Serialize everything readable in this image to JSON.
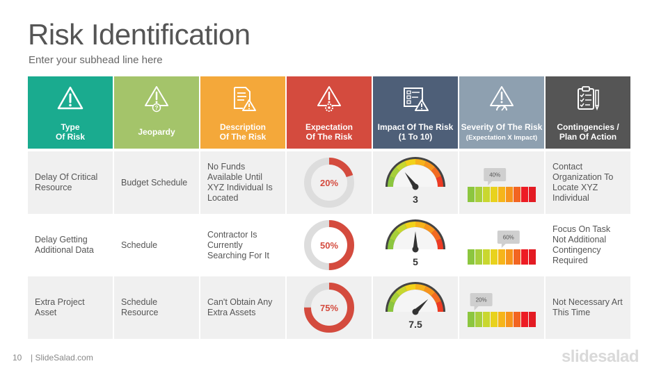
{
  "title": "Risk Identification",
  "subhead": "Enter your subhead line here",
  "headers": [
    {
      "line1": "Type",
      "line2": "Of Risk",
      "color": "#1aab8f",
      "icon": "warning-icon"
    },
    {
      "line1": "Jeopardy",
      "line2": "",
      "color": "#a4c46a",
      "icon": "warning-question-icon"
    },
    {
      "line1": "Description",
      "line2": "Of The Risk",
      "color": "#f4a83a",
      "icon": "document-warning-icon"
    },
    {
      "line1": "Expectation",
      "line2": "Of The Risk",
      "color": "#d44b3e",
      "icon": "warning-gear-icon"
    },
    {
      "line1": "Impact Of The Risk",
      "line2": "(1 To 10)",
      "color": "#4e5f78",
      "icon": "checklist-warning-icon"
    },
    {
      "line1": "Severity Of The Risk",
      "line2": "(Expectation X Impact)",
      "color": "#8ea0b0",
      "icon": "warning-gauge-icon"
    },
    {
      "line1": "Contingencies /",
      "line2": "Plan Of Action",
      "color": "#555555",
      "icon": "clipboard-pencil-icon"
    }
  ],
  "rows": [
    {
      "type": "Delay Of Critical Resource",
      "jeopardy": "Budget Schedule",
      "description": "No Funds Available Until XYZ Individual Is Located",
      "expectation": 20,
      "expectation_label": "20%",
      "impact": 3,
      "impact_label": "3",
      "severity": 40,
      "severity_label": "40%",
      "plan": "Contact Organization To Locate XYZ Individual"
    },
    {
      "type": "Delay Getting Additional Data",
      "jeopardy": "Schedule",
      "description": "Contractor Is Currently Searching For It",
      "expectation": 50,
      "expectation_label": "50%",
      "impact": 5,
      "impact_label": "5",
      "severity": 60,
      "severity_label": "60%",
      "plan": "Focus On Task Not Additional Contingency Required"
    },
    {
      "type": "Extra Project Asset",
      "jeopardy": "Schedule Resource",
      "description": "Can't Obtain Any Extra Assets",
      "expectation": 75,
      "expectation_label": "75%",
      "impact": 7.5,
      "impact_label": "7.5",
      "severity": 20,
      "severity_label": "20%",
      "plan": "Not Necessary Art This Time"
    }
  ],
  "footer": {
    "page": "10",
    "site": "| SlideSalad.com",
    "logo": "slidesalad"
  },
  "colors": {
    "donut": "#d44b3e",
    "donut_track": "#dddddd",
    "severity_scale": [
      "#8cc63f",
      "#a8cf3d",
      "#c9d72f",
      "#e8d21d",
      "#f6b51a",
      "#f7941d",
      "#f26522",
      "#ed1c24",
      "#e31b23"
    ]
  }
}
